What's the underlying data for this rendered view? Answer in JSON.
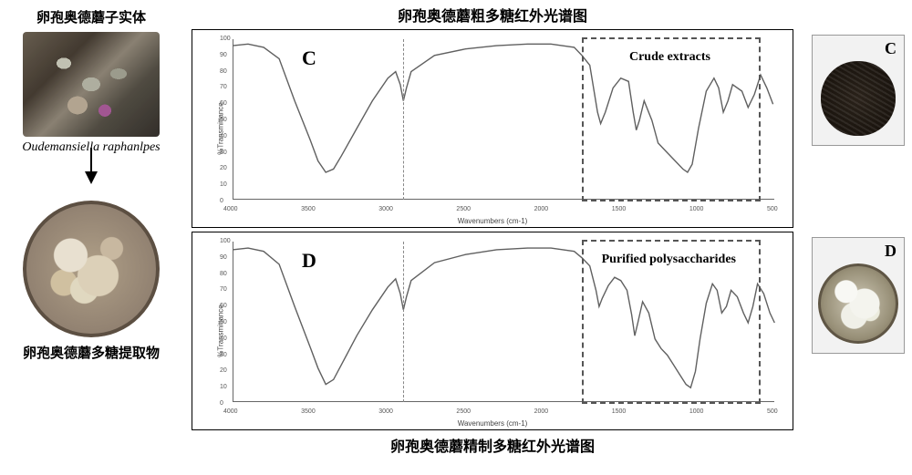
{
  "left": {
    "top_caption": "卵孢奥德蘑子实体",
    "species_latin": "Oudemansiella raphanlpes",
    "bottom_caption": "卵孢奥德蘑多糖提取物"
  },
  "center": {
    "top_title": "卵孢奥德蘑粗多糖红外光谱图",
    "bottom_title": "卵孢奥德蘑精制多糖红外光谱图",
    "chart_c": {
      "type": "line",
      "letter": "C",
      "annotation": "Crude extracts",
      "x_axis_label": "Wavenumbers (cm-1)",
      "y_axis_label": "%Transmittance",
      "xlim": [
        4000,
        500
      ],
      "ylim": [
        0,
        100
      ],
      "ytick_step": 10,
      "xtick_step": 500,
      "line_color": "#606060",
      "line_width": 1.4,
      "background_color": "#ffffff",
      "border_color": "#000000",
      "vline_x": 2900,
      "vline_color": "#888888",
      "roi": {
        "x_from": 1750,
        "x_to": 600,
        "color": "#555555"
      },
      "points": [
        [
          4000,
          96
        ],
        [
          3900,
          97
        ],
        [
          3800,
          95
        ],
        [
          3700,
          88
        ],
        [
          3600,
          62
        ],
        [
          3500,
          38
        ],
        [
          3450,
          25
        ],
        [
          3400,
          18
        ],
        [
          3350,
          20
        ],
        [
          3300,
          28
        ],
        [
          3200,
          45
        ],
        [
          3100,
          62
        ],
        [
          3000,
          76
        ],
        [
          2950,
          80
        ],
        [
          2920,
          72
        ],
        [
          2900,
          62
        ],
        [
          2880,
          70
        ],
        [
          2850,
          80
        ],
        [
          2700,
          90
        ],
        [
          2500,
          94
        ],
        [
          2300,
          96
        ],
        [
          2100,
          97
        ],
        [
          1950,
          97
        ],
        [
          1800,
          95
        ],
        [
          1750,
          90
        ],
        [
          1700,
          84
        ],
        [
          1650,
          55
        ],
        [
          1630,
          48
        ],
        [
          1600,
          55
        ],
        [
          1550,
          70
        ],
        [
          1500,
          76
        ],
        [
          1450,
          74
        ],
        [
          1420,
          55
        ],
        [
          1400,
          44
        ],
        [
          1380,
          50
        ],
        [
          1350,
          62
        ],
        [
          1300,
          50
        ],
        [
          1260,
          36
        ],
        [
          1200,
          30
        ],
        [
          1150,
          25
        ],
        [
          1100,
          20
        ],
        [
          1070,
          18
        ],
        [
          1040,
          23
        ],
        [
          1000,
          45
        ],
        [
          950,
          68
        ],
        [
          900,
          76
        ],
        [
          870,
          70
        ],
        [
          840,
          55
        ],
        [
          810,
          62
        ],
        [
          780,
          72
        ],
        [
          720,
          68
        ],
        [
          680,
          58
        ],
        [
          640,
          66
        ],
        [
          600,
          78
        ],
        [
          560,
          70
        ],
        [
          520,
          60
        ]
      ]
    },
    "chart_d": {
      "type": "line",
      "letter": "D",
      "annotation": "Purified polysaccharides",
      "x_axis_label": "Wavenumbers (cm-1)",
      "y_axis_label": "%Transmittance",
      "xlim": [
        4000,
        500
      ],
      "ylim": [
        0,
        100
      ],
      "ytick_step": 10,
      "xtick_step": 500,
      "line_color": "#606060",
      "line_width": 1.4,
      "background_color": "#ffffff",
      "border_color": "#000000",
      "vline_x": 2900,
      "vline_color": "#888888",
      "roi": {
        "x_from": 1750,
        "x_to": 600,
        "color": "#555555"
      },
      "points": [
        [
          4000,
          95
        ],
        [
          3900,
          96
        ],
        [
          3800,
          94
        ],
        [
          3700,
          86
        ],
        [
          3600,
          60
        ],
        [
          3500,
          35
        ],
        [
          3450,
          22
        ],
        [
          3400,
          12
        ],
        [
          3350,
          15
        ],
        [
          3300,
          24
        ],
        [
          3200,
          42
        ],
        [
          3100,
          58
        ],
        [
          3000,
          72
        ],
        [
          2950,
          77
        ],
        [
          2920,
          68
        ],
        [
          2900,
          58
        ],
        [
          2880,
          66
        ],
        [
          2850,
          76
        ],
        [
          2700,
          87
        ],
        [
          2500,
          92
        ],
        [
          2300,
          95
        ],
        [
          2100,
          96
        ],
        [
          1950,
          96
        ],
        [
          1800,
          94
        ],
        [
          1750,
          90
        ],
        [
          1700,
          85
        ],
        [
          1660,
          70
        ],
        [
          1640,
          60
        ],
        [
          1620,
          65
        ],
        [
          1580,
          73
        ],
        [
          1540,
          78
        ],
        [
          1500,
          76
        ],
        [
          1460,
          70
        ],
        [
          1430,
          55
        ],
        [
          1410,
          42
        ],
        [
          1390,
          50
        ],
        [
          1360,
          63
        ],
        [
          1320,
          56
        ],
        [
          1280,
          40
        ],
        [
          1240,
          34
        ],
        [
          1200,
          30
        ],
        [
          1160,
          24
        ],
        [
          1120,
          18
        ],
        [
          1080,
          12
        ],
        [
          1050,
          10
        ],
        [
          1020,
          20
        ],
        [
          990,
          40
        ],
        [
          950,
          62
        ],
        [
          910,
          74
        ],
        [
          880,
          70
        ],
        [
          850,
          56
        ],
        [
          820,
          60
        ],
        [
          790,
          70
        ],
        [
          750,
          66
        ],
        [
          710,
          56
        ],
        [
          680,
          50
        ],
        [
          650,
          60
        ],
        [
          620,
          74
        ],
        [
          580,
          68
        ],
        [
          540,
          56
        ],
        [
          510,
          50
        ]
      ]
    }
  },
  "right": {
    "sample_c_letter": "C",
    "sample_d_letter": "D"
  }
}
